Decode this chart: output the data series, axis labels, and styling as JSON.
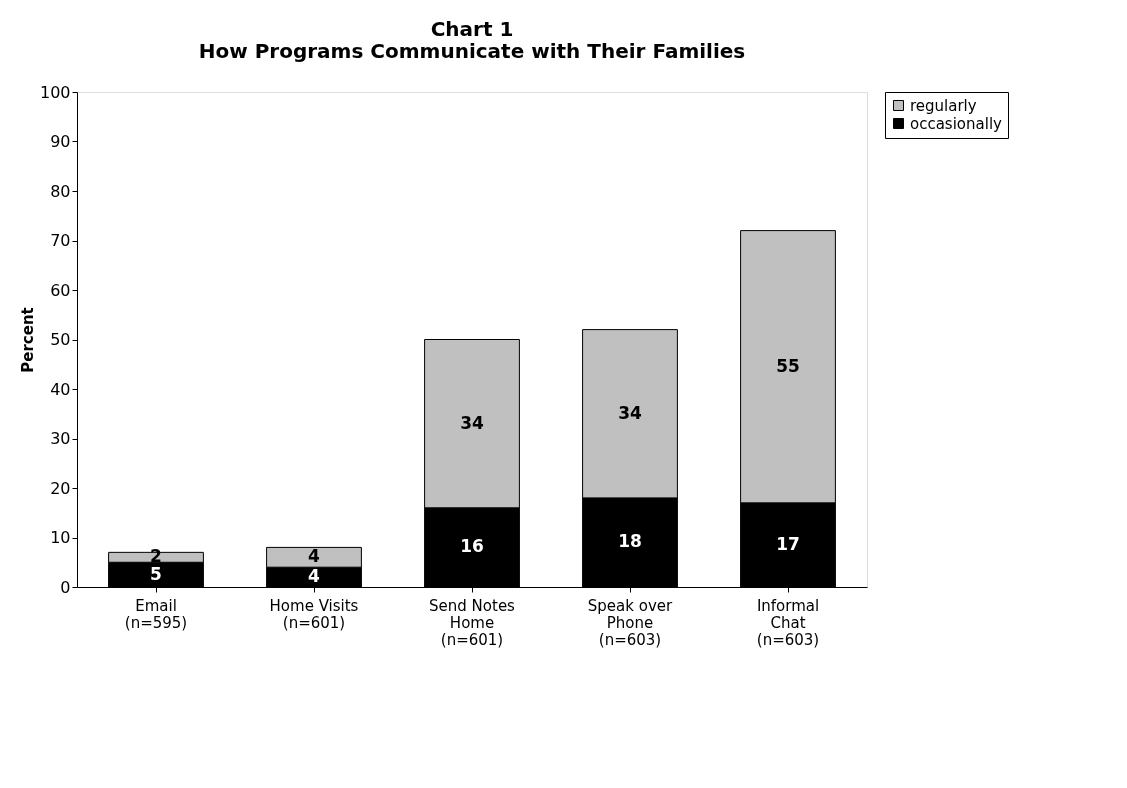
{
  "chart_data": {
    "type": "bar",
    "title": [
      "Chart 1",
      "How Programs Communicate with Their Families"
    ],
    "ylabel": "Percent",
    "categories": [
      "Email (n=595)",
      "Home Visits (n=601)",
      "Send Notes Home (n=601)",
      "Speak over Phone (n=603)",
      "Informal Chat (n=603)"
    ],
    "series": [
      {
        "name": "occasionally",
        "color": "#000000",
        "values": [
          5,
          4,
          16,
          18,
          17
        ]
      },
      {
        "name": "regularly",
        "color": "#c0c0c0",
        "values": [
          2,
          4,
          34,
          34,
          55
        ]
      }
    ],
    "stacked": true,
    "data_labels": true,
    "ylim": [
      0,
      100
    ],
    "yticks": [
      0,
      10,
      20,
      30,
      40,
      50,
      60,
      70,
      80,
      90,
      100
    ],
    "grid": false,
    "legend": "right"
  }
}
